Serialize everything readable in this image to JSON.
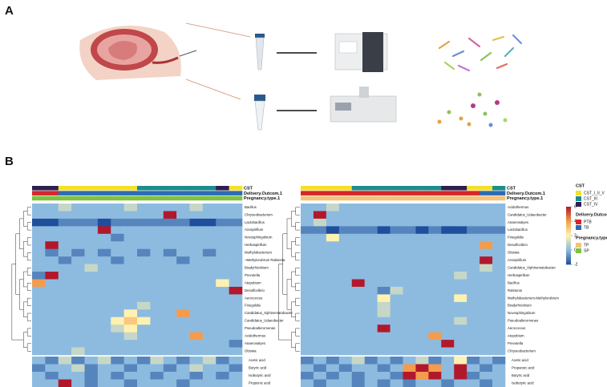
{
  "panel_a": {
    "label": "A"
  },
  "panel_b": {
    "label": "B",
    "legend": {
      "colorbar": {
        "ticks": [
          6,
          4,
          2,
          0,
          -2
        ],
        "colors": [
          "#b2182b",
          "#f59b4c",
          "#fff2b0",
          "#8dbbe0",
          "#1f4e9c"
        ]
      },
      "groups": [
        {
          "title": "CST",
          "items": [
            {
              "name": "CST_I_II_V",
              "color": "#f5e027"
            },
            {
              "name": "CST_III",
              "color": "#1e8c8c"
            },
            {
              "name": "CST_IV",
              "color": "#2e1f4f"
            }
          ]
        },
        {
          "title": "Delivery.Outcom.1",
          "items": [
            {
              "name": "PTB",
              "color": "#d7262b"
            },
            {
              "name": "TB",
              "color": "#2d6bb5"
            }
          ]
        },
        {
          "title": "Pregnancy.type.1",
          "items": [
            {
              "name": "TP",
              "color": "#f5c27a"
            },
            {
              "name": "SP",
              "color": "#7dc242"
            }
          ]
        }
      ]
    },
    "heatmaps": [
      {
        "annotations": [
          {
            "name": "CST",
            "values": [
              "CST_IV",
              "CST_IV",
              "CST_I_II_V",
              "CST_I_II_V",
              "CST_I_II_V",
              "CST_I_II_V",
              "CST_I_II_V",
              "CST_I_II_V",
              "CST_III",
              "CST_III",
              "CST_III",
              "CST_III",
              "CST_III",
              "CST_III",
              "CST_IV",
              "CST_I_II_V"
            ]
          },
          {
            "name": "Delivery.Outcom.1",
            "values": [
              "PTB",
              "PTB",
              "TB",
              "TB",
              "TB",
              "TB",
              "TB",
              "TB",
              "TB",
              "TB",
              "TB",
              "TB",
              "TB",
              "TB",
              "TB",
              "TB"
            ]
          },
          {
            "name": "Pregnancy.type.1",
            "values": [
              "SP",
              "SP",
              "SP",
              "SP",
              "SP",
              "SP",
              "SP",
              "SP",
              "SP",
              "SP",
              "SP",
              "SP",
              "SP",
              "SP",
              "SP",
              "SP"
            ]
          }
        ],
        "rows": [
          "Bacillus",
          "Chryseobacterium",
          "Lactobacillus",
          "Azospirillum",
          "Novosphingobium",
          "Herbaspirillum",
          "Methylobacterium",
          "~Methylorubrum Ralstonia",
          "Bradyrhizobium",
          "Prevotella",
          "Atopobium",
          "Desulfovibrio",
          "Aerococcus",
          "Finegoldia",
          "Candidatus_Xiphinematobacter",
          "Candidatus_Udaeobacter",
          "Pseudoalteromonas",
          "Acidothermus",
          "Anaerosalyes",
          "Ottowia"
        ],
        "values": [
          [
            0,
            0,
            1,
            0,
            0,
            0,
            0,
            1,
            0,
            0,
            0,
            0,
            1,
            0,
            0,
            0
          ],
          [
            0,
            0,
            0,
            0,
            0,
            0,
            0,
            0,
            0,
            0,
            6,
            0,
            0,
            0,
            0,
            0
          ],
          [
            -2,
            -2,
            -1,
            -1,
            -1,
            -2,
            -1,
            -1,
            -1,
            -1,
            -1,
            -1,
            -2,
            -2,
            -1,
            -1
          ],
          [
            0,
            0,
            0,
            0,
            0,
            6,
            0,
            0,
            0,
            0,
            0,
            0,
            0,
            0,
            0,
            0
          ],
          [
            0,
            0,
            0,
            0,
            0,
            0,
            -1,
            0,
            0,
            0,
            0,
            0,
            0,
            0,
            0,
            0
          ],
          [
            0,
            6,
            0,
            0,
            0,
            0,
            0,
            0,
            0,
            0,
            0,
            0,
            0,
            0,
            0,
            0
          ],
          [
            0,
            -1,
            0,
            -1,
            0,
            -1,
            0,
            0,
            -1,
            0,
            -1,
            0,
            0,
            -1,
            0,
            0
          ],
          [
            0,
            0,
            -1,
            0,
            0,
            0,
            -1,
            0,
            0,
            0,
            0,
            -1,
            0,
            0,
            0,
            0
          ],
          [
            0,
            0,
            0,
            0,
            1,
            0,
            0,
            0,
            0,
            0,
            0,
            0,
            0,
            0,
            0,
            0
          ],
          [
            -1,
            6,
            0,
            0,
            0,
            0,
            0,
            0,
            0,
            0,
            0,
            0,
            0,
            0,
            0,
            0
          ],
          [
            4,
            0,
            0,
            0,
            0,
            0,
            0,
            0,
            0,
            0,
            0,
            0,
            0,
            0,
            2,
            0
          ],
          [
            0,
            0,
            0,
            0,
            0,
            0,
            0,
            0,
            0,
            0,
            0,
            0,
            0,
            0,
            0,
            6
          ],
          [
            0,
            0,
            0,
            0,
            0,
            0,
            0,
            0,
            0,
            0,
            0,
            0,
            0,
            0,
            0,
            0
          ],
          [
            0,
            0,
            0,
            0,
            0,
            0,
            0,
            0,
            1,
            0,
            0,
            0,
            0,
            0,
            0,
            0
          ],
          [
            0,
            0,
            0,
            0,
            0,
            0,
            0,
            2,
            0,
            0,
            0,
            4,
            0,
            0,
            0,
            0
          ],
          [
            0,
            0,
            0,
            0,
            0,
            0,
            2,
            3,
            2,
            0,
            0,
            0,
            0,
            0,
            0,
            0
          ],
          [
            0,
            0,
            0,
            0,
            0,
            0,
            1,
            2,
            0,
            0,
            0,
            0,
            0,
            0,
            0,
            0
          ],
          [
            0,
            0,
            0,
            0,
            0,
            0,
            0,
            1,
            0,
            0,
            0,
            0,
            4,
            0,
            0,
            0
          ],
          [
            0,
            0,
            0,
            0,
            0,
            0,
            0,
            0,
            0,
            0,
            0,
            0,
            0,
            0,
            0,
            -1
          ],
          [
            0,
            0,
            0,
            1,
            0,
            0,
            0,
            0,
            0,
            0,
            0,
            0,
            0,
            0,
            0,
            0
          ]
        ],
        "metabolites": [
          "Acetic acid",
          "Butyric acid",
          "Isobutyric acid",
          "Propionic acid"
        ],
        "metabolite_values": [
          [
            0,
            -1,
            1,
            -1,
            0,
            1,
            -1,
            0,
            -1,
            1,
            0,
            -1,
            0,
            1,
            -1,
            0
          ],
          [
            -1,
            0,
            0,
            1,
            -1,
            0,
            0,
            -1,
            0,
            0,
            -1,
            0,
            1,
            0,
            0,
            -1
          ],
          [
            0,
            -1,
            0,
            0,
            -1,
            0,
            -1,
            0,
            0,
            -1,
            0,
            0,
            -1,
            0,
            -1,
            0
          ],
          [
            0,
            0,
            6,
            0,
            -1,
            0,
            0,
            -1,
            0,
            0,
            0,
            -1,
            0,
            0,
            0,
            0
          ]
        ]
      },
      {
        "annotations": [
          {
            "name": "CST",
            "values": [
              "CST_I_II_V",
              "CST_I_II_V",
              "CST_I_II_V",
              "CST_I_II_V",
              "CST_III",
              "CST_III",
              "CST_III",
              "CST_III",
              "CST_III",
              "CST_III",
              "CST_III",
              "CST_IV",
              "CST_IV",
              "CST_I_II_V",
              "CST_I_II_V",
              "CST_III"
            ]
          },
          {
            "name": "Delivery.Outcom.1",
            "values": [
              "PTB",
              "PTB",
              "PTB",
              "PTB",
              "PTB",
              "PTB",
              "PTB",
              "PTB",
              "PTB",
              "PTB",
              "PTB",
              "PTB",
              "PTB",
              "PTB",
              "TB",
              "TB"
            ]
          },
          {
            "name": "Pregnancy.type.1",
            "values": [
              "TP",
              "TP",
              "TP",
              "TP",
              "TP",
              "TP",
              "TP",
              "TP",
              "TP",
              "TP",
              "TP",
              "TP",
              "TP",
              "TP",
              "TP",
              "TP"
            ]
          }
        ],
        "rows": [
          "Acidothermus",
          "Candidatus_Udaeobacter",
          "Anaerosalyes",
          "Lactobacillus",
          "Finegoldia",
          "Desulfovibrio",
          "Ottowia",
          "Azospirillum",
          "Candidatus_Xiphinematobacter",
          "Herbaspirillum",
          "Bacillus",
          "Ralstonia",
          "Methylobacterium-Methylorubrum",
          "Bradyrhizobium",
          "Novosphingobium",
          "Pseudoalteromonas",
          "Aerococcus",
          "Atopobium",
          "Prevotella",
          "Chryseobacterium"
        ],
        "values": [
          [
            0,
            0,
            1,
            0,
            0,
            0,
            0,
            0,
            0,
            0,
            0,
            0,
            0,
            0,
            0,
            0
          ],
          [
            0,
            6,
            0,
            0,
            0,
            0,
            0,
            0,
            0,
            0,
            0,
            0,
            0,
            0,
            0,
            0
          ],
          [
            0,
            1,
            0,
            0,
            0,
            0,
            0,
            0,
            0,
            0,
            0,
            0,
            0,
            0,
            0,
            0
          ],
          [
            -1,
            -1,
            -2,
            -1,
            -1,
            -1,
            -2,
            -1,
            -1,
            -2,
            -1,
            -2,
            -2,
            -1,
            -1,
            -1
          ],
          [
            0,
            0,
            2,
            0,
            0,
            0,
            0,
            0,
            0,
            0,
            0,
            0,
            0,
            0,
            0,
            0
          ],
          [
            0,
            0,
            0,
            0,
            0,
            0,
            0,
            0,
            0,
            0,
            0,
            0,
            0,
            0,
            4,
            0
          ],
          [
            0,
            0,
            0,
            0,
            0,
            0,
            0,
            0,
            0,
            0,
            0,
            0,
            0,
            0,
            0,
            0
          ],
          [
            0,
            0,
            0,
            0,
            0,
            0,
            0,
            0,
            0,
            0,
            0,
            0,
            0,
            0,
            6,
            0
          ],
          [
            0,
            0,
            0,
            0,
            0,
            0,
            0,
            0,
            0,
            0,
            0,
            0,
            0,
            0,
            1,
            0
          ],
          [
            0,
            0,
            0,
            0,
            0,
            0,
            0,
            0,
            0,
            0,
            0,
            0,
            1,
            0,
            0,
            0
          ],
          [
            0,
            0,
            0,
            0,
            6,
            0,
            0,
            0,
            0,
            0,
            0,
            0,
            0,
            0,
            0,
            0
          ],
          [
            0,
            0,
            0,
            0,
            0,
            0,
            -1,
            1,
            0,
            0,
            0,
            0,
            0,
            0,
            0,
            0
          ],
          [
            0,
            0,
            0,
            0,
            0,
            0,
            2,
            0,
            0,
            0,
            0,
            0,
            2,
            0,
            0,
            0
          ],
          [
            0,
            0,
            0,
            0,
            0,
            0,
            1,
            0,
            0,
            0,
            0,
            0,
            0,
            0,
            0,
            0
          ],
          [
            0,
            0,
            0,
            0,
            0,
            0,
            1,
            0,
            0,
            0,
            0,
            0,
            0,
            0,
            0,
            0
          ],
          [
            0,
            0,
            0,
            0,
            0,
            0,
            0,
            0,
            0,
            0,
            0,
            0,
            1,
            0,
            0,
            0
          ],
          [
            0,
            0,
            0,
            0,
            0,
            0,
            6,
            0,
            0,
            0,
            0,
            0,
            0,
            0,
            0,
            0
          ],
          [
            0,
            0,
            0,
            0,
            0,
            0,
            0,
            0,
            0,
            0,
            4,
            0,
            0,
            0,
            0,
            0
          ],
          [
            0,
            0,
            0,
            0,
            0,
            0,
            0,
            0,
            0,
            0,
            0,
            6,
            0,
            0,
            0,
            0
          ],
          [
            0,
            0,
            0,
            0,
            0,
            0,
            0,
            0,
            0,
            0,
            0,
            0,
            0,
            0,
            0,
            0
          ]
        ],
        "metabolites": [
          "Acetic acid",
          "Propanoic acid",
          "Butyric acid",
          "Isobutyric acid"
        ],
        "metabolite_values": [
          [
            -1,
            0,
            -1,
            0,
            1,
            -1,
            0,
            -1,
            0,
            1,
            -1,
            0,
            2,
            -1,
            0,
            -1
          ],
          [
            0,
            -1,
            0,
            -1,
            0,
            0,
            -1,
            0,
            4,
            6,
            4,
            0,
            6,
            0,
            -1,
            0
          ],
          [
            -1,
            0,
            -1,
            0,
            -1,
            0,
            0,
            -1,
            6,
            4,
            6,
            0,
            6,
            -1,
            0,
            0
          ],
          [
            0,
            -1,
            0,
            0,
            -1,
            0,
            -1,
            0,
            -1,
            0,
            0,
            -1,
            0,
            0,
            -1,
            0
          ]
        ]
      }
    ]
  }
}
